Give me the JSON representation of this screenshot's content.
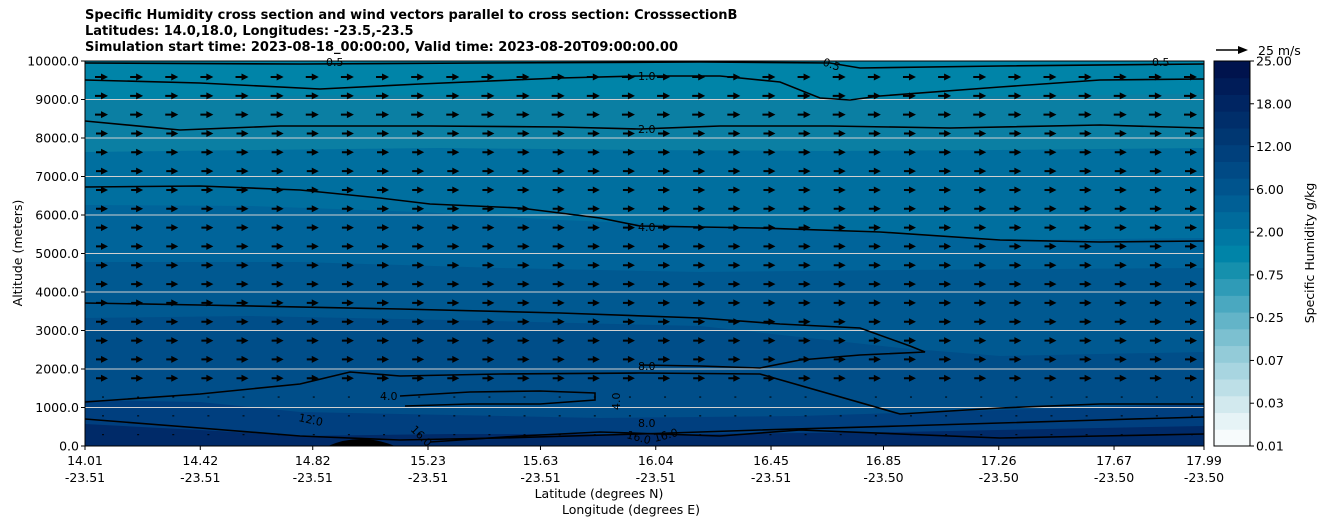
{
  "chart_data": {
    "type": "contour",
    "title_lines": [
      "Specific Humidity cross section and wind vectors parallel to cross section: CrosssectionB",
      "Latitudes: 14.0,18.0, Longitudes: -23.5,-23.5",
      "Simulation start time: 2023-08-18_00:00:00, Valid time: 2023-08-20T09:00:00.00"
    ],
    "ylabel": "Altitude (meters)",
    "xlabel_line1": "Latitude (degrees N)",
    "xlabel_line2": "Longitude (degrees E)",
    "x_tick_lat": [
      "14.01",
      "14.42",
      "14.82",
      "15.23",
      "15.63",
      "16.04",
      "16.45",
      "16.85",
      "17.26",
      "17.67",
      "17.99"
    ],
    "x_tick_lon": [
      "-23.51",
      "-23.51",
      "-23.51",
      "-23.51",
      "-23.51",
      "-23.51",
      "-23.51",
      "-23.50",
      "-23.50",
      "-23.50",
      "-23.50"
    ],
    "y_ticks": [
      "10000.0",
      "9000.0",
      "8000.0",
      "7000.0",
      "6000.0",
      "5000.0",
      "4000.0",
      "3000.0",
      "2000.0",
      "1000.0",
      "0.0"
    ],
    "ylim": [
      0,
      10000
    ],
    "xlim": [
      14.01,
      17.99
    ],
    "grid": "horizontal",
    "contour_labels": [
      "0.5",
      "1.0",
      "2.0",
      "4.0",
      "8.0",
      "4.0",
      "4.0",
      "12.0",
      "16.0",
      "8.0",
      "16.0",
      "0.5",
      "0.5",
      "16.0"
    ],
    "colorbar": {
      "label": "Specific Humidity g/kg",
      "tick_labels": [
        "25.00",
        "18.00",
        "12.00",
        "6.00",
        "2.00",
        "0.75",
        "0.25",
        "0.07",
        "0.03",
        "0.01"
      ],
      "colors": [
        "#f7fbfc",
        "#e6f3f6",
        "#d2e9ee",
        "#bddfe7",
        "#a8d5e0",
        "#93cbd8",
        "#7cc0d0",
        "#63b4c8",
        "#4aa8c0",
        "#2f9bb7",
        "#1590ad",
        "#0084a8",
        "#0078a3",
        "#006b9c",
        "#005f95",
        "#00548d",
        "#004a85",
        "#00407c",
        "#003772",
        "#002e6a",
        "#002562",
        "#001c58",
        "#00134d"
      ]
    },
    "quiver_key": "25 m/s"
  }
}
